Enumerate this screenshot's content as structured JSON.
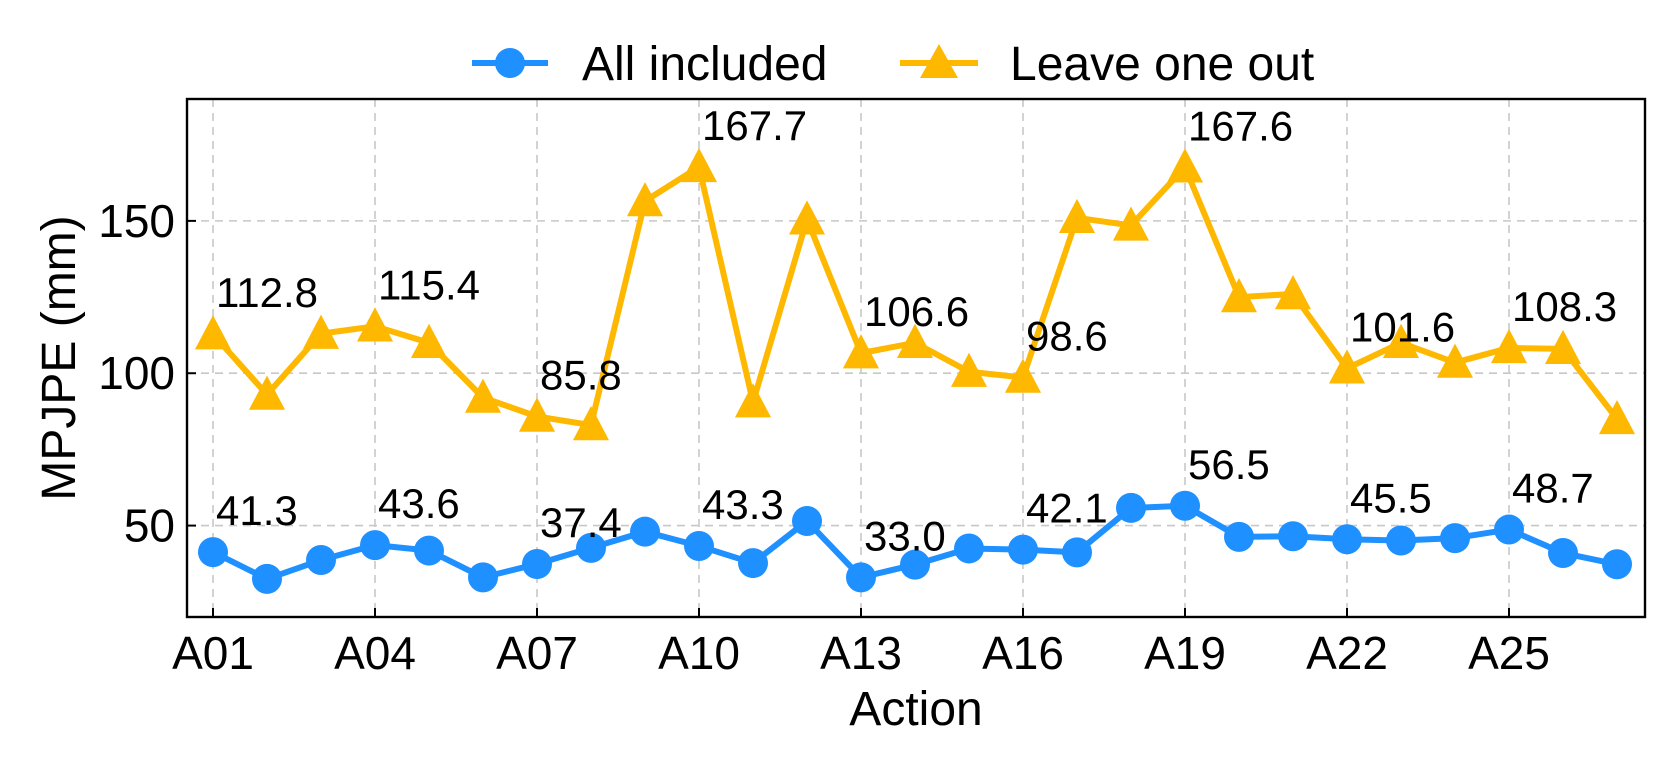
{
  "chart_data": {
    "type": "line",
    "xlabel": "Action",
    "ylabel": "MPJPE (mm)",
    "ylim": [
      20,
      190
    ],
    "yticks": [
      50,
      100,
      150
    ],
    "categories": [
      "A01",
      "A02",
      "A03",
      "A04",
      "A05",
      "A06",
      "A07",
      "A08",
      "A09",
      "A10",
      "A11",
      "A12",
      "A13",
      "A14",
      "A15",
      "A16",
      "A17",
      "A18",
      "A19",
      "A20",
      "A21",
      "A22",
      "A23",
      "A24",
      "A25",
      "A26",
      "A27"
    ],
    "xtick_labels": [
      "A01",
      "A04",
      "A07",
      "A10",
      "A13",
      "A16",
      "A19",
      "A22",
      "A25"
    ],
    "grid": true,
    "legend_position": "top-center",
    "series": [
      {
        "name": "All included",
        "color": "#1f90ff",
        "marker": "circle",
        "values": [
          41.3,
          32.5,
          38.7,
          43.6,
          41.8,
          33.0,
          37.4,
          42.7,
          48.0,
          43.3,
          37.7,
          51.5,
          33.0,
          37.2,
          42.5,
          42.1,
          41.2,
          55.8,
          56.5,
          46.3,
          46.5,
          45.5,
          45.1,
          45.9,
          48.7,
          41.0,
          37.3
        ],
        "labels": [
          {
            "index": 0,
            "text": "41.3"
          },
          {
            "index": 3,
            "text": "43.6"
          },
          {
            "index": 6,
            "text": "37.4"
          },
          {
            "index": 9,
            "text": "43.3"
          },
          {
            "index": 12,
            "text": "33.0"
          },
          {
            "index": 15,
            "text": "42.1"
          },
          {
            "index": 18,
            "text": "56.5"
          },
          {
            "index": 21,
            "text": "45.5"
          },
          {
            "index": 24,
            "text": "48.7"
          }
        ]
      },
      {
        "name": "Leave one out",
        "color": "#ffb800",
        "marker": "triangle",
        "values": [
          112.8,
          93.0,
          113.0,
          115.4,
          110.0,
          92.0,
          85.8,
          83.0,
          156.5,
          167.7,
          90.5,
          150.5,
          106.6,
          110.0,
          100.5,
          98.6,
          151.0,
          148.5,
          167.6,
          125.0,
          126.0,
          101.6,
          110.0,
          103.5,
          108.3,
          108.0,
          85.0
        ],
        "labels": [
          {
            "index": 0,
            "text": "112.8"
          },
          {
            "index": 3,
            "text": "115.4"
          },
          {
            "index": 6,
            "text": "85.8"
          },
          {
            "index": 9,
            "text": "167.7"
          },
          {
            "index": 12,
            "text": "106.6"
          },
          {
            "index": 15,
            "text": "98.6"
          },
          {
            "index": 18,
            "text": "167.6"
          },
          {
            "index": 21,
            "text": "101.6"
          },
          {
            "index": 24,
            "text": "108.3"
          }
        ]
      }
    ]
  }
}
